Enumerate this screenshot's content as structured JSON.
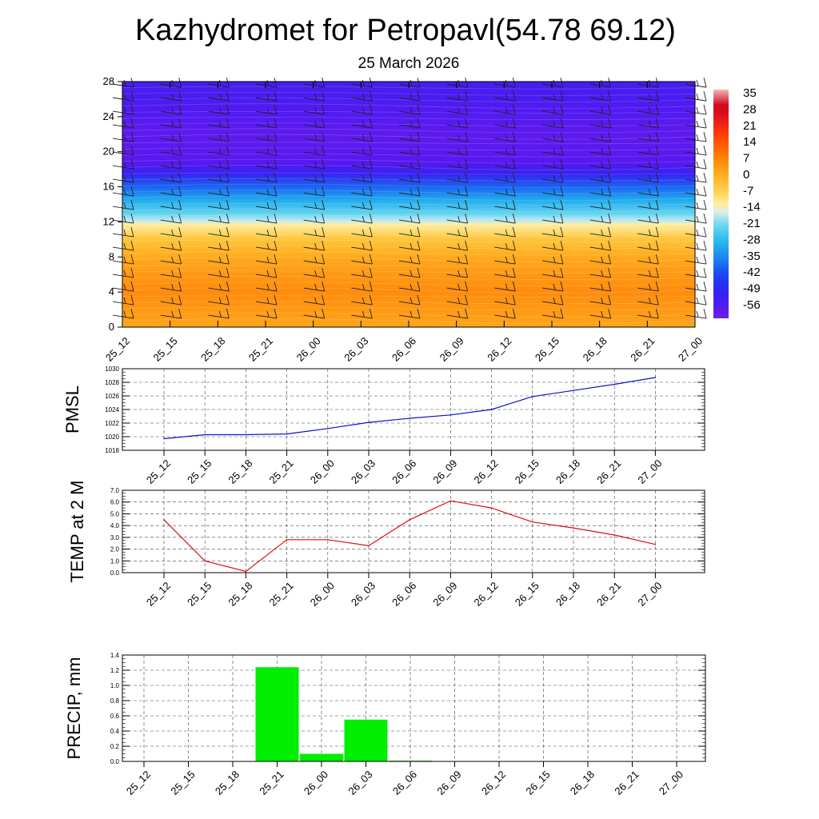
{
  "title": "Kazhydromet for Petropavl(54.78 69.12)",
  "subtitle": "25 March 2026",
  "colors": {
    "pmsl_line": "#1010cc",
    "temp_line": "#dd1010",
    "precip_bar": "#00ee00",
    "grid": "#444444"
  },
  "chart_data": [
    {
      "id": "cross-section",
      "type": "heatmap",
      "title": "",
      "xlabel": "",
      "ylabel": "",
      "x_ticks": [
        "25_12",
        "25_15",
        "25_18",
        "25_21",
        "26_00",
        "26_03",
        "26_06",
        "26_09",
        "26_12",
        "26_15",
        "26_18",
        "26_21",
        "27_00"
      ],
      "y_ticks": [
        "0",
        "4",
        "8",
        "12",
        "16",
        "20",
        "24",
        "28"
      ],
      "ylim": [
        0,
        28
      ],
      "colorbar_labels": [
        "35",
        "28",
        "21",
        "14",
        "7",
        "0",
        "-7",
        "-14",
        "-21",
        "-28",
        "-35",
        "-42",
        "-49",
        "-56"
      ],
      "colorbar_range": [
        -60,
        38
      ],
      "temperature_profile": [
        {
          "level": 0,
          "value": 3
        },
        {
          "level": 2,
          "value": 5
        },
        {
          "level": 4,
          "value": 7
        },
        {
          "level": 6,
          "value": 5
        },
        {
          "level": 8,
          "value": 2
        },
        {
          "level": 10,
          "value": -3
        },
        {
          "level": 11.7,
          "value": -11
        },
        {
          "level": 12.2,
          "value": -16
        },
        {
          "level": 13,
          "value": -21
        },
        {
          "level": 14.5,
          "value": -29
        },
        {
          "level": 16,
          "value": -38
        },
        {
          "level": 17.5,
          "value": -50
        },
        {
          "level": 19,
          "value": -56
        },
        {
          "level": 22,
          "value": -57
        },
        {
          "level": 25,
          "value": -54
        },
        {
          "level": 28,
          "value": -52
        }
      ],
      "wind_barbs": "present"
    },
    {
      "id": "pmsl",
      "type": "line",
      "ylabel": "PMSL",
      "xlabel": "",
      "ylim": [
        1018,
        1030
      ],
      "y_ticks": [
        "1018",
        "1020",
        "1022",
        "1024",
        "1026",
        "1028",
        "1030"
      ],
      "categories": [
        "25_12",
        "25_15",
        "25_18",
        "25_21",
        "26_00",
        "26_03",
        "26_06",
        "26_09",
        "26_12",
        "26_15",
        "26_18",
        "26_21",
        "27_00"
      ],
      "values": [
        1019.7,
        1020.3,
        1020.3,
        1020.4,
        1021.2,
        1022.1,
        1022.7,
        1023.2,
        1024.0,
        1025.9,
        1026.8,
        1027.7,
        1028.7
      ]
    },
    {
      "id": "temp",
      "type": "line",
      "ylabel": "TEMP at 2 M",
      "xlabel": "",
      "ylim": [
        0,
        7
      ],
      "y_ticks": [
        "0.0",
        "1.0",
        "2.0",
        "3.0",
        "4.0",
        "5.0",
        "6.0",
        "7.0"
      ],
      "categories": [
        "25_12",
        "25_15",
        "25_18",
        "25_21",
        "26_00",
        "26_03",
        "26_06",
        "26_09",
        "26_12",
        "26_15",
        "26_18",
        "26_21",
        "27_00"
      ],
      "values": [
        4.5,
        1.0,
        0.1,
        2.8,
        2.8,
        2.3,
        4.5,
        6.1,
        5.5,
        4.3,
        3.8,
        3.2,
        2.4
      ]
    },
    {
      "id": "precip",
      "type": "bar",
      "ylabel": "PRECIP, mm",
      "xlabel": "",
      "ylim": [
        0,
        1.4
      ],
      "y_ticks": [
        "0.0",
        "0.2",
        "0.4",
        "0.6",
        "0.8",
        "1.0",
        "1.2",
        "1.4"
      ],
      "categories": [
        "25_12",
        "25_15",
        "25_18",
        "25_21",
        "26_00",
        "26_03",
        "26_06",
        "26_09",
        "26_12",
        "26_15",
        "26_18",
        "26_21",
        "27_00"
      ],
      "values": [
        0,
        0,
        0,
        1.24,
        0.1,
        0.55,
        0.01,
        0,
        0,
        0,
        0,
        0,
        0
      ]
    }
  ]
}
